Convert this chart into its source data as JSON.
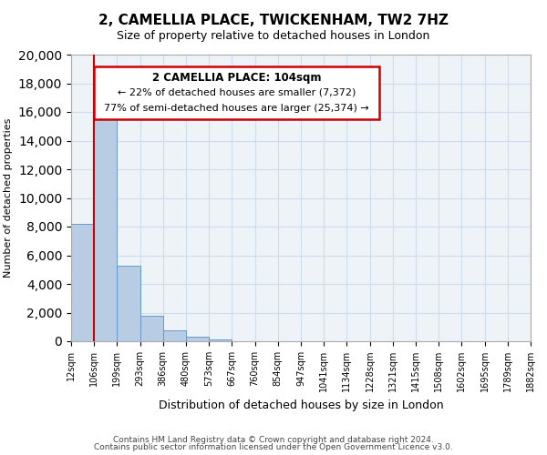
{
  "title": "2, CAMELLIA PLACE, TWICKENHAM, TW2 7HZ",
  "subtitle": "Size of property relative to detached houses in London",
  "xlabel": "Distribution of detached houses by size in London",
  "ylabel": "Number of detached properties",
  "bin_labels": [
    "12sqm",
    "106sqm",
    "199sqm",
    "293sqm",
    "386sqm",
    "480sqm",
    "573sqm",
    "667sqm",
    "760sqm",
    "854sqm",
    "947sqm",
    "1041sqm",
    "1134sqm",
    "1228sqm",
    "1321sqm",
    "1415sqm",
    "1508sqm",
    "1602sqm",
    "1695sqm",
    "1789sqm",
    "1882sqm"
  ],
  "bar_values": [
    8200,
    16600,
    5300,
    1800,
    750,
    300,
    150,
    0,
    0,
    0,
    0,
    0,
    0,
    0,
    0,
    0,
    0,
    0,
    0,
    0
  ],
  "bar_color": "#b8cce4",
  "bar_edge_color": "#6699cc",
  "property_line_x": 1,
  "ylim": [
    0,
    20000
  ],
  "yticks": [
    0,
    2000,
    4000,
    6000,
    8000,
    10000,
    12000,
    14000,
    16000,
    18000,
    20000
  ],
  "annotation_title": "2 CAMELLIA PLACE: 104sqm",
  "annotation_line1": "← 22% of detached houses are smaller (7,372)",
  "annotation_line2": "77% of semi-detached houses are larger (25,374) →",
  "annotation_box_color": "#ffffff",
  "annotation_box_edge": "#cc0000",
  "red_line_color": "#cc0000",
  "grid_color": "#ccddee",
  "bg_color": "#eef3f8",
  "footer1": "Contains HM Land Registry data © Crown copyright and database right 2024.",
  "footer2": "Contains public sector information licensed under the Open Government Licence v3.0."
}
